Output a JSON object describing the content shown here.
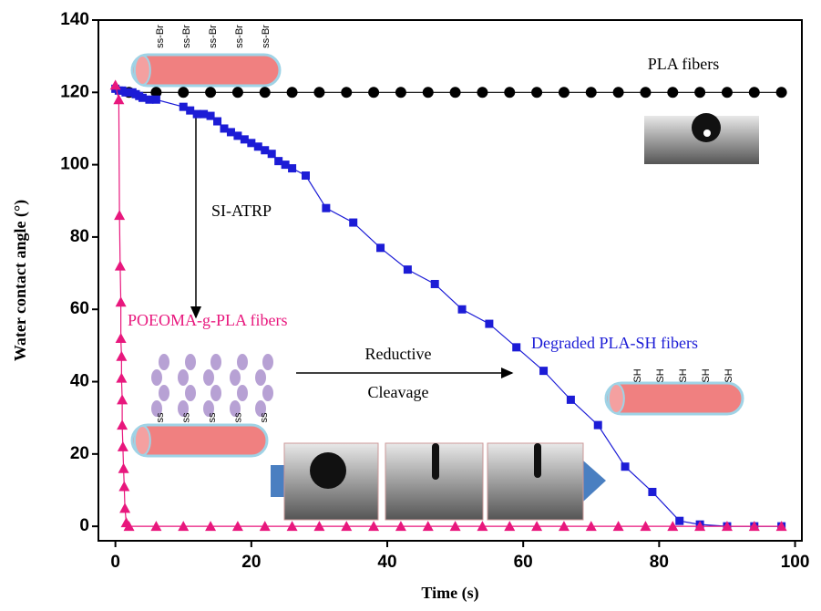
{
  "chart_data": {
    "type": "line",
    "x_label": "Time (s)",
    "y_label": "Water contact angle (°)",
    "xlim": [
      -2.5,
      101
    ],
    "ylim": [
      -4,
      140
    ],
    "xticks": [
      0,
      20,
      40,
      60,
      80,
      100
    ],
    "yticks": [
      0,
      20,
      40,
      60,
      80,
      100,
      120,
      140
    ],
    "series": [
      {
        "name": "PLA fibers",
        "color": "#000000",
        "marker": "circle",
        "x": [
          2,
          6,
          10,
          14,
          18,
          22,
          26,
          30,
          34,
          38,
          42,
          46,
          50,
          54,
          58,
          62,
          66,
          70,
          74,
          78,
          82,
          86,
          90,
          94,
          98
        ],
        "values": [
          120,
          120,
          120,
          120,
          120,
          120,
          120,
          120,
          120,
          120,
          120,
          120,
          120,
          120,
          120,
          120,
          120,
          120,
          120,
          120,
          120,
          120,
          120,
          120,
          120
        ]
      },
      {
        "name": "Degraded PLA-SH fibers",
        "color": "#1c1cd6",
        "marker": "square",
        "x": [
          0,
          0.5,
          1,
          1.5,
          2,
          2.5,
          3,
          3.5,
          4,
          5,
          6,
          10,
          11,
          12,
          13,
          14,
          15,
          16,
          17,
          18,
          19,
          20,
          21,
          22,
          23,
          24,
          25,
          26,
          28,
          31,
          35,
          39,
          43,
          47,
          51,
          55,
          59,
          63,
          67,
          71,
          75,
          79,
          83,
          86,
          90,
          94,
          98
        ],
        "values": [
          121,
          120.5,
          120.5,
          120,
          120,
          120,
          119.5,
          119,
          118.5,
          118,
          118,
          116,
          115,
          114,
          114,
          113.5,
          112,
          110,
          109,
          108,
          107,
          106,
          105,
          104,
          103,
          101,
          100,
          99,
          97,
          88,
          84,
          77,
          71,
          67,
          60,
          56,
          49.5,
          43,
          35,
          28,
          16.5,
          9.5,
          1.5,
          0.5,
          0,
          0,
          0
        ]
      },
      {
        "name": "POEOMA-g-PLA fibers",
        "color": "#e8177d",
        "marker": "triangle",
        "x": [
          0,
          0.5,
          0.6,
          0.7,
          0.8,
          0.8,
          0.9,
          0.9,
          1,
          1,
          1.1,
          1.2,
          1.3,
          1.4,
          1.6,
          2,
          6,
          10,
          14,
          18,
          22,
          26,
          30,
          34,
          38,
          42,
          46,
          50,
          54,
          58,
          62,
          66,
          70,
          74,
          78,
          82,
          86,
          90,
          94,
          98
        ],
        "values": [
          122,
          118,
          86,
          72,
          62,
          52,
          47,
          41,
          35,
          28,
          22,
          16,
          11,
          5,
          1,
          0,
          0,
          0,
          0,
          0,
          0,
          0,
          0,
          0,
          0,
          0,
          0,
          0,
          0,
          0,
          0,
          0,
          0,
          0,
          0,
          0,
          0,
          0,
          0,
          0
        ]
      }
    ],
    "annotations": [
      {
        "text": "PLA fibers",
        "color": "#000000"
      },
      {
        "text": "SI-ATRP",
        "color": "#000000"
      },
      {
        "text": "POEOMA-g-PLA fibers",
        "color": "#e8177d"
      },
      {
        "text": "Reductive",
        "color": "#000000"
      },
      {
        "text": "Cleavage",
        "color": "#000000"
      },
      {
        "text": "Degraded PLA-SH fibers",
        "color": "#1c1cd6"
      }
    ],
    "fiber_labels": {
      "top": [
        "ss-Br",
        "ss-Br",
        "ss-Br",
        "ss-Br",
        "ss-Br"
      ],
      "left": [
        "ss",
        "ss",
        "ss",
        "ss",
        "ss"
      ],
      "right": [
        "SH",
        "SH",
        "SH",
        "SH",
        "SH"
      ]
    }
  }
}
